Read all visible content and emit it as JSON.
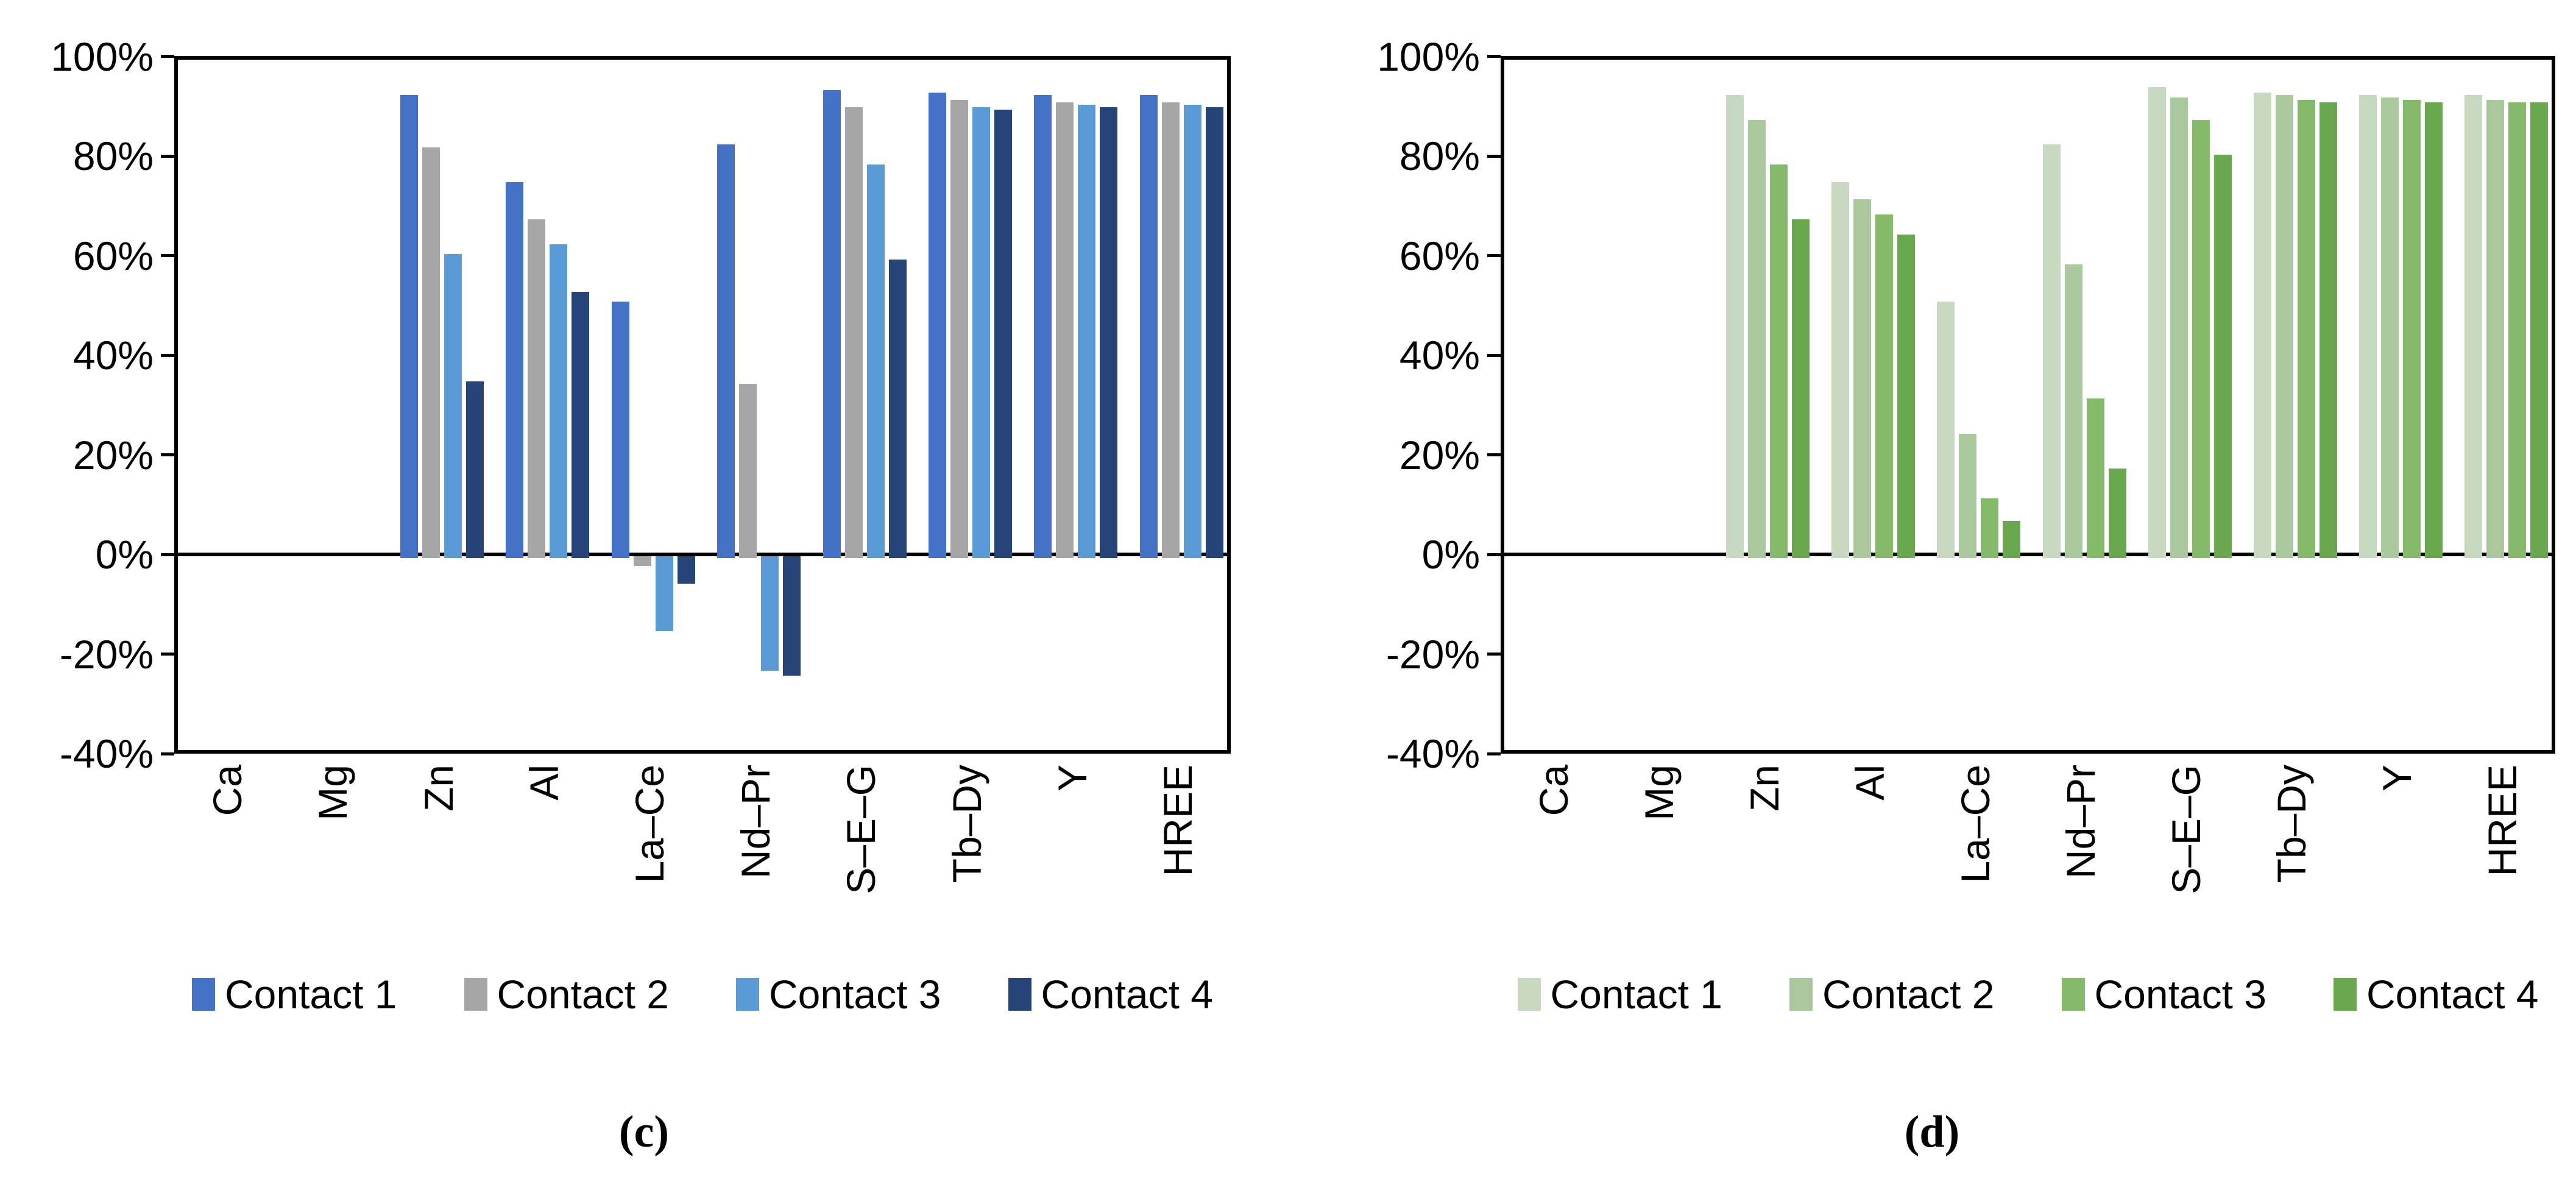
{
  "figure": {
    "description": "Two side-by-side clustered bar charts of elemental removal/recovery percentages for four contacts",
    "background": "#ffffff",
    "axis_color": "#000000"
  },
  "chart_data": [
    {
      "type": "bar",
      "panel": "c",
      "caption": "(c)",
      "title": "",
      "xlabel": "",
      "ylabel": "",
      "categories": [
        "Ca",
        "Mg",
        "Zn",
        "Al",
        "La–Ce",
        "Nd–Pr",
        "S–E–G",
        "Tb–Dy",
        "Y",
        "HREE"
      ],
      "series": [
        {
          "name": "Contact 1",
          "color": "#4472C4",
          "values": [
            null,
            null,
            93,
            75.5,
            51.5,
            83,
            94,
            93.5,
            93,
            93
          ]
        },
        {
          "name": "Contact 2",
          "color": "#A6A6A6",
          "values": [
            null,
            null,
            82.5,
            68,
            -2,
            35,
            90.5,
            92,
            91.5,
            91.5
          ]
        },
        {
          "name": "Contact 3",
          "color": "#5B9BD5",
          "values": [
            null,
            null,
            61,
            63,
            -15,
            -23,
            79,
            90.5,
            91,
            91
          ]
        },
        {
          "name": "Contact 4",
          "color": "#264478",
          "values": [
            null,
            null,
            35.5,
            53.5,
            -5.5,
            -24,
            60,
            90,
            90.5,
            90.5
          ]
        }
      ],
      "ylim": [
        -40,
        100
      ],
      "yticks": [
        {
          "label": "100%",
          "value": 100
        },
        {
          "label": "80%",
          "value": 80
        },
        {
          "label": "60%",
          "value": 60
        },
        {
          "label": "40%",
          "value": 40
        },
        {
          "label": "20%",
          "value": 20
        },
        {
          "label": "0%",
          "value": 0
        },
        {
          "label": "-20%",
          "value": -20
        },
        {
          "label": "-40%",
          "value": -40
        }
      ],
      "grid": false,
      "legend_position": "bottom"
    },
    {
      "type": "bar",
      "panel": "d",
      "caption": "(d)",
      "title": "",
      "xlabel": "",
      "ylabel": "",
      "categories": [
        "Ca",
        "Mg",
        "Zn",
        "Al",
        "La–Ce",
        "Nd–Pr",
        "S–E–G",
        "Tb–Dy",
        "Y",
        "HREE"
      ],
      "series": [
        {
          "name": "Contact 1",
          "color": "#C7DAC1",
          "values": [
            null,
            null,
            93,
            75.5,
            51.5,
            83,
            94.5,
            93.5,
            93,
            93
          ]
        },
        {
          "name": "Contact 2",
          "color": "#A9C89B",
          "values": [
            null,
            null,
            88,
            72,
            25,
            59,
            92.5,
            93,
            92.5,
            92
          ]
        },
        {
          "name": "Contact 3",
          "color": "#85BA6A",
          "values": [
            null,
            null,
            79,
            69,
            12,
            32,
            88,
            92,
            92,
            91.5
          ]
        },
        {
          "name": "Contact 4",
          "color": "#6AA84F",
          "values": [
            null,
            null,
            68,
            65,
            7.5,
            18,
            81,
            91.5,
            91.5,
            91.5
          ]
        }
      ],
      "ylim": [
        -40,
        100
      ],
      "yticks": [
        {
          "label": "100%",
          "value": 100
        },
        {
          "label": "80%",
          "value": 80
        },
        {
          "label": "60%",
          "value": 60
        },
        {
          "label": "40%",
          "value": 40
        },
        {
          "label": "20%",
          "value": 20
        },
        {
          "label": "0%",
          "value": 0
        },
        {
          "label": "-20%",
          "value": -20
        },
        {
          "label": "-40%",
          "value": -40
        }
      ],
      "grid": false,
      "legend_position": "bottom"
    }
  ]
}
